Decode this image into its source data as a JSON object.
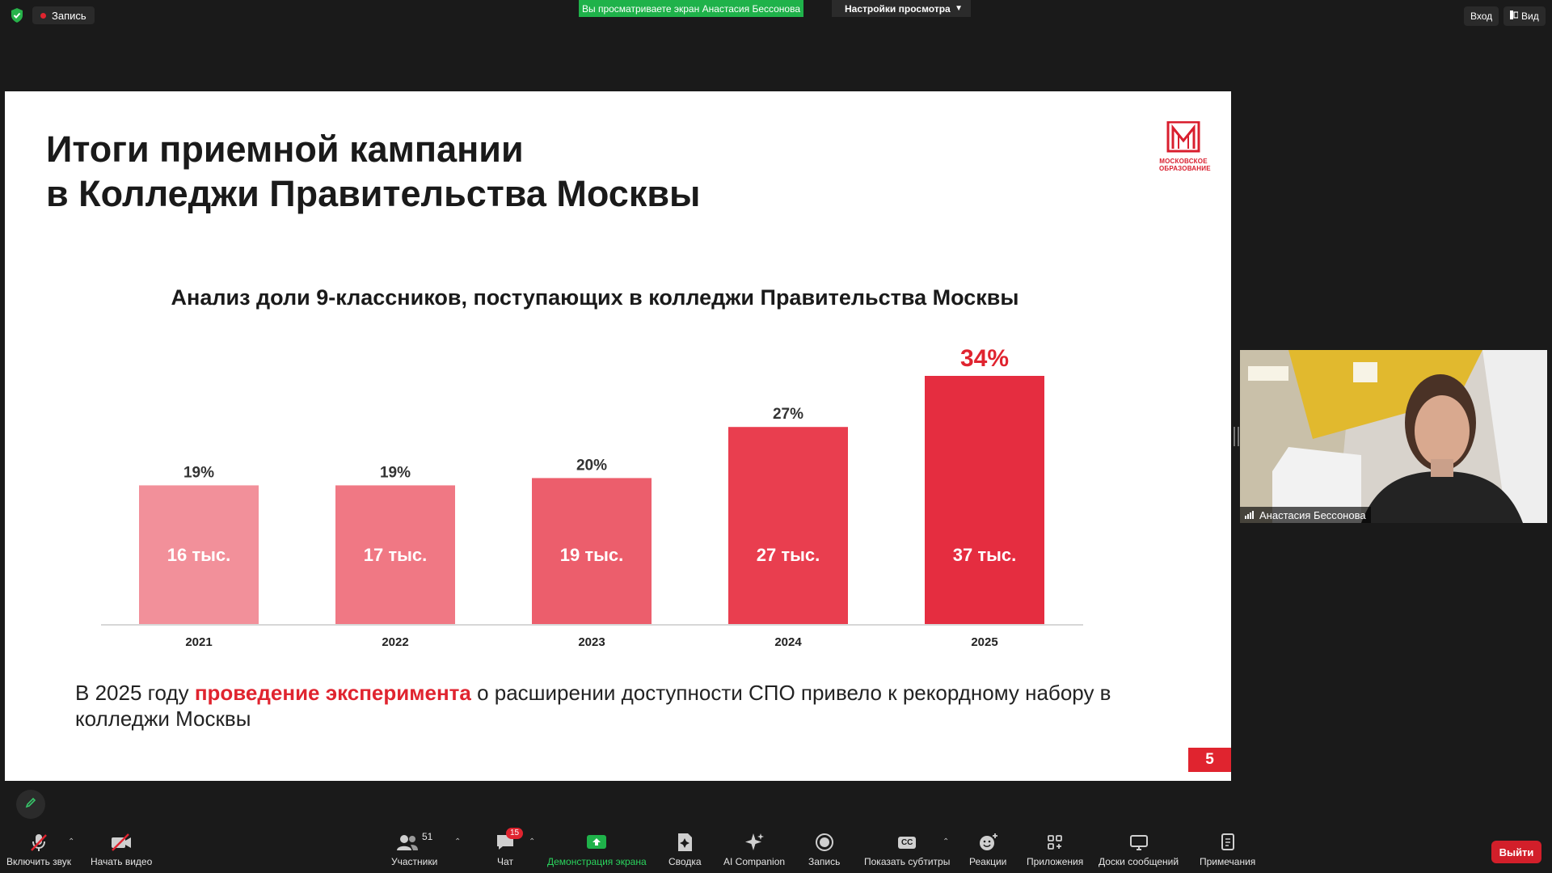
{
  "topbar": {
    "record_label": "Запись",
    "share_banner": "Вы просматриваете экран Анастасия Бессонова",
    "view_settings": "Настройки просмотра",
    "login_label": "Вход",
    "view_label": "Вид"
  },
  "slide": {
    "title_line1": "Итоги приемной кампании",
    "title_line2": "в Колледжи Правительства Москвы",
    "logo_line1": "МОСКОВСКОЕ",
    "logo_line2": "ОБРАЗОВАНИЕ",
    "chart_title": "Анализ доли 9-классников, поступающих в колледжи Правительства Москвы",
    "footnote_pre": "В 2025 году ",
    "footnote_highlight": "проведение эксперимента",
    "footnote_post": " о расширении доступности СПО привело к рекордному набору в колледжи Москвы",
    "page_number": "5"
  },
  "chart_data": {
    "type": "bar",
    "title": "Анализ доли 9-классников, поступающих в колледжи Правительства Москвы",
    "categories": [
      "2021",
      "2022",
      "2023",
      "2024",
      "2025"
    ],
    "values": [
      19,
      19,
      20,
      27,
      34
    ],
    "value_labels": [
      "19%",
      "19%",
      "20%",
      "27%",
      "34%"
    ],
    "inner_labels": [
      "16 тыс.",
      "17 тыс.",
      "19 тыс.",
      "27 тыс.",
      "37 тыс."
    ],
    "colors": [
      "#f2909a",
      "#f07884",
      "#ec5e6c",
      "#e93e4f",
      "#e52d40"
    ],
    "ylim": [
      0,
      34
    ],
    "grid": false,
    "xlabel": "",
    "ylabel": ""
  },
  "video": {
    "participant_name": "Анастасия Бессонова"
  },
  "toolbar": {
    "audio": "Включить звук",
    "video": "Начать видео",
    "participants": "Участники",
    "participants_count": "51",
    "chat": "Чат",
    "chat_badge": "15",
    "share": "Демонстрация экрана",
    "summary": "Сводка",
    "ai": "AI Companion",
    "record": "Запись",
    "captions": "Показать субтитры",
    "captions_icon": "CC",
    "reactions": "Реакции",
    "apps": "Приложения",
    "whiteboards": "Доски сообщений",
    "notes": "Примечания",
    "leave": "Выйти"
  }
}
